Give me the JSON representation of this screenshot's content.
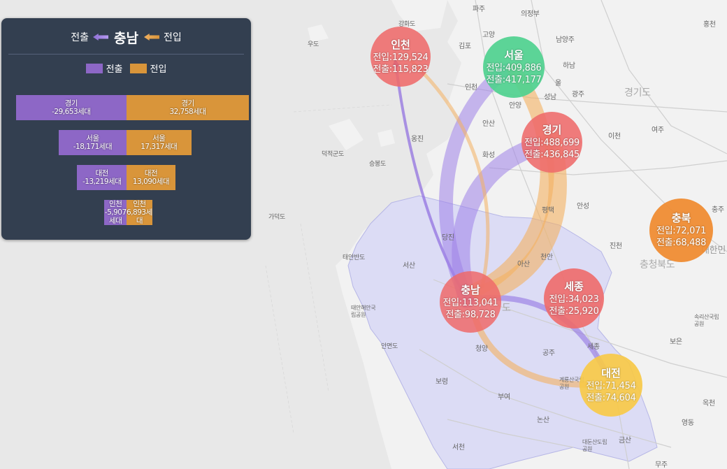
{
  "panel": {
    "out_label": "전출",
    "region": "충남",
    "in_label": "전입",
    "legend_out": "전출",
    "legend_in": "전입",
    "colors": {
      "out": "#8d67c6",
      "in": "#d9953a",
      "panel_bg": "#333f50"
    }
  },
  "chart_data": {
    "type": "bar",
    "categories": [
      "경기",
      "서울",
      "대전",
      "인천"
    ],
    "series": [
      {
        "name": "전출",
        "values": [
          -29653,
          -18171,
          -13219,
          -5907
        ],
        "labels": [
          "-29,653세대",
          "-18,171세대",
          "-13,219세대",
          "-5,907세대"
        ]
      },
      {
        "name": "전입",
        "values": [
          32758,
          17317,
          13090,
          6893
        ],
        "labels": [
          "32,758세대",
          "17,317세대",
          "13,090세대",
          "6,893세대"
        ]
      }
    ]
  },
  "nodes": [
    {
      "id": "incheon",
      "name": "인천",
      "in": "전입:129,524",
      "out": "전출:115,823",
      "color": "#ee6a6a"
    },
    {
      "id": "seoul",
      "name": "서울",
      "in": "전입:409,886",
      "out": "전출:417,177",
      "color": "#4fd18f"
    },
    {
      "id": "gyeonggi",
      "name": "경기",
      "in": "전입:488,699",
      "out": "전출:436,845",
      "color": "#ee6a6a"
    },
    {
      "id": "chungnam",
      "name": "충남",
      "in": "전입:113,041",
      "out": "전출:98,728",
      "color": "#ee6a6a"
    },
    {
      "id": "sejong",
      "name": "세종",
      "in": "전입:34,023",
      "out": "전출:25,920",
      "color": "#ee6a6a"
    },
    {
      "id": "daejeon",
      "name": "대전",
      "in": "전입:71,454",
      "out": "전출:74,604",
      "color": "#f7c948"
    },
    {
      "id": "chungbuk",
      "name": "충북",
      "in": "전입:72,071",
      "out": "전출:68,488",
      "color": "#f08a2e"
    }
  ],
  "map_labels": {
    "paju": "파주",
    "uijeongbu": "의정부",
    "ganghwa": "강화도",
    "goyang": "고양",
    "namyangju": "남양주",
    "gimpo": "김포",
    "hanam": "하남",
    "gwangju": "광주",
    "seongnam": "성남",
    "anyang": "안양",
    "ansan": "안산",
    "hwaseong": "화성",
    "icheon": "이천",
    "yeoju": "여주",
    "ongjin": "옹진",
    "deokjeok": "덕적군도",
    "seungbong": "승봉도",
    "gyeonggido": "경기도",
    "anseong": "안성",
    "pyeongtaek": "평택",
    "dangjin": "당진",
    "seosan": "서산",
    "asan": "아산",
    "cheonan": "천안",
    "jincheon": "진천",
    "chungcheongbukdo": "충청북도",
    "hongcheon": "홍천",
    "chungju": "충주",
    "daehanmin": "대한민",
    "taean": "태안반도",
    "taean_park": "태안해안국립공원",
    "anmyeon": "안면도",
    "cheongyang": "청양",
    "gongju": "공주",
    "sejong_lbl": "세종",
    "boryeong": "보령",
    "buyeo": "부여",
    "nonsan": "논산",
    "seocheon": "서천",
    "geumsan": "금산",
    "boeun": "보은",
    "okcheon": "옥천",
    "yeongdong": "영동",
    "muju": "무주",
    "gaeryongsan": "계룡산국립공원",
    "daedunsan": "대둔산도립공원",
    "songnisan": "속리산국립공원",
    "incheon_lbl": "인천",
    "gapyeongdo": "가덕도",
    "woodo": "우도",
    "do_lbl": "도",
    "ui": "울"
  }
}
